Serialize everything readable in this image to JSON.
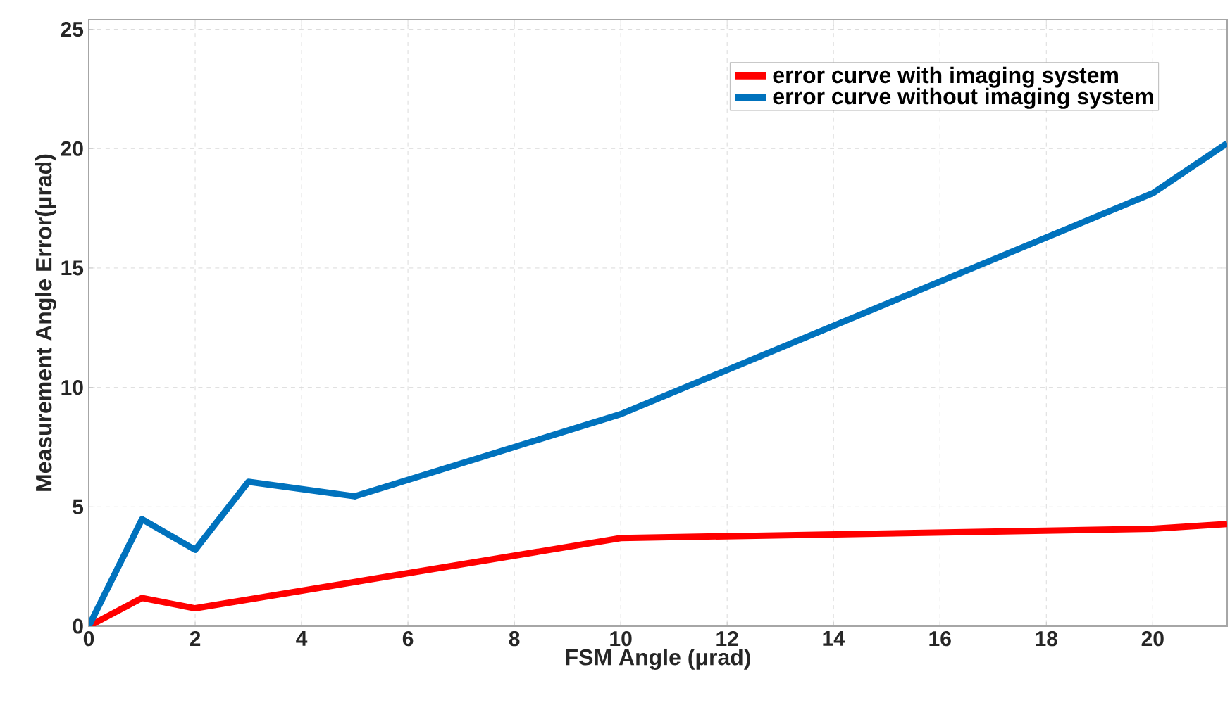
{
  "chart_data": {
    "type": "line",
    "xlabel": "FSM Angle (μrad)",
    "ylabel": "Measurement Angle Error(μrad)",
    "xlim": [
      0,
      21.4
    ],
    "ylim": [
      0,
      25.4
    ],
    "xticks": [
      0,
      2,
      4,
      6,
      8,
      10,
      12,
      14,
      16,
      18,
      20
    ],
    "yticks": [
      0,
      5,
      10,
      15,
      20,
      25
    ],
    "grid": true,
    "legend": "top right",
    "marker": "none",
    "line_style": "solid",
    "series": [
      {
        "name": "error curve with imaging system",
        "color": "#ff0000",
        "x": [
          0,
          1,
          2,
          10,
          20,
          21.4
        ],
        "values": [
          0,
          1.18,
          0.75,
          3.69,
          4.08,
          4.28
        ]
      },
      {
        "name": "error curve without imaging system",
        "color": "#0072bd",
        "x": [
          0,
          1,
          2,
          3,
          5,
          10,
          20,
          21.4
        ],
        "values": [
          0,
          4.48,
          3.2,
          6.05,
          5.44,
          8.88,
          18.13,
          20.23
        ]
      }
    ]
  }
}
